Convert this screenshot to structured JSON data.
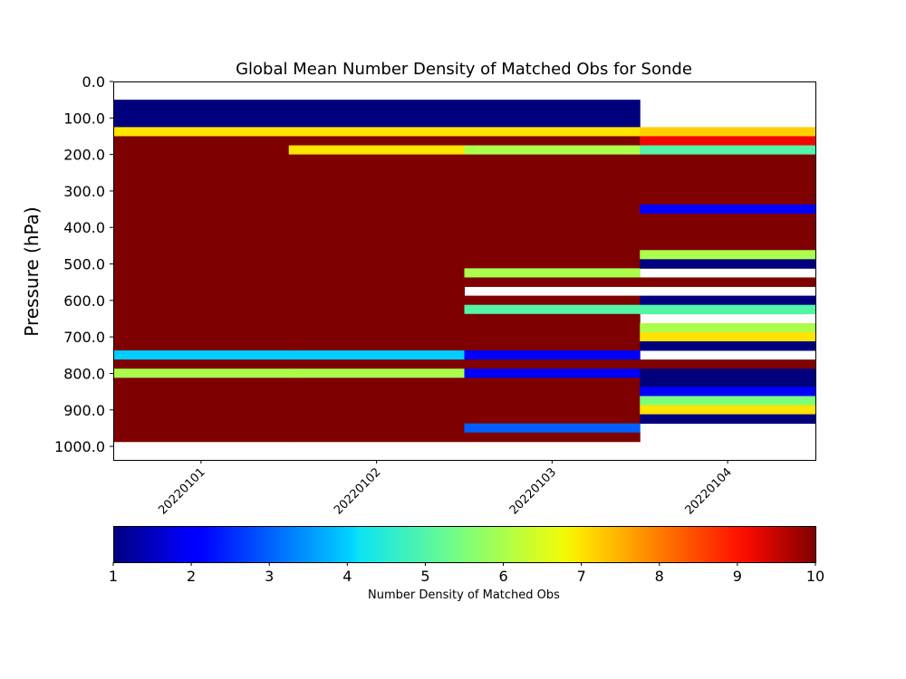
{
  "chart_data": {
    "type": "heatmap",
    "title": "Global Mean Number Density of Matched Obs for Sonde",
    "ylabel": "Pressure (hPa)",
    "xlabel": "",
    "y_inverted": true,
    "ylim": [
      1037,
      0
    ],
    "y_ticks": [
      "0.0",
      "100.0",
      "200.0",
      "300.0",
      "400.0",
      "500.0",
      "600.0",
      "700.0",
      "800.0",
      "900.0",
      "1000.0"
    ],
    "x_categories": [
      "20220101",
      "20220102",
      "20220103",
      "20220104"
    ],
    "colorscale": "jet",
    "vmin": 1,
    "vmax": 10,
    "colorbar_label": "Number Density of Matched Obs",
    "colorbar_ticks": [
      "1",
      "2",
      "3",
      "4",
      "5",
      "6",
      "7",
      "8",
      "9",
      "10"
    ],
    "columns": [
      {
        "category": "20220101",
        "cells": [
          {
            "p0": 50,
            "p1": 125,
            "value": 1
          },
          {
            "p0": 125,
            "p1": 150,
            "value": 7
          },
          {
            "p0": 150,
            "p1": 175,
            "value": 10
          },
          {
            "p0": 175,
            "p1": 200,
            "value": 10
          },
          {
            "p0": 200,
            "p1": 737,
            "value": 10
          },
          {
            "p0": 737,
            "p1": 762,
            "value": 4
          },
          {
            "p0": 762,
            "p1": 787,
            "value": 10
          },
          {
            "p0": 787,
            "p1": 812,
            "value": 6
          },
          {
            "p0": 812,
            "p1": 987,
            "value": 10
          }
        ]
      },
      {
        "category": "20220102",
        "cells": [
          {
            "p0": 50,
            "p1": 125,
            "value": 1
          },
          {
            "p0": 125,
            "p1": 150,
            "value": 7
          },
          {
            "p0": 150,
            "p1": 175,
            "value": 10
          },
          {
            "p0": 175,
            "p1": 200,
            "value": 7
          },
          {
            "p0": 200,
            "p1": 737,
            "value": 10
          },
          {
            "p0": 737,
            "p1": 762,
            "value": 4
          },
          {
            "p0": 762,
            "p1": 787,
            "value": 10
          },
          {
            "p0": 787,
            "p1": 812,
            "value": 6
          },
          {
            "p0": 812,
            "p1": 987,
            "value": 10
          }
        ]
      },
      {
        "category": "20220103",
        "cells": [
          {
            "p0": 50,
            "p1": 125,
            "value": 1
          },
          {
            "p0": 125,
            "p1": 150,
            "value": 7
          },
          {
            "p0": 150,
            "p1": 175,
            "value": 10
          },
          {
            "p0": 175,
            "p1": 200,
            "value": 6
          },
          {
            "p0": 200,
            "p1": 512,
            "value": 10
          },
          {
            "p0": 512,
            "p1": 537,
            "value": 6
          },
          {
            "p0": 537,
            "p1": 562,
            "value": 10
          },
          {
            "p0": 562,
            "p1": 587,
            "value": null
          },
          {
            "p0": 587,
            "p1": 612,
            "value": 10
          },
          {
            "p0": 612,
            "p1": 637,
            "value": 5
          },
          {
            "p0": 637,
            "p1": 737,
            "value": 10
          },
          {
            "p0": 737,
            "p1": 762,
            "value": 2
          },
          {
            "p0": 762,
            "p1": 787,
            "value": 10
          },
          {
            "p0": 787,
            "p1": 812,
            "value": 2
          },
          {
            "p0": 812,
            "p1": 937,
            "value": 10
          },
          {
            "p0": 937,
            "p1": 962,
            "value": 3
          },
          {
            "p0": 962,
            "p1": 987,
            "value": 10
          }
        ]
      },
      {
        "category": "20220104",
        "cells": [
          {
            "p0": 125,
            "p1": 150,
            "value": 7.2
          },
          {
            "p0": 150,
            "p1": 175,
            "value": 9.2
          },
          {
            "p0": 175,
            "p1": 200,
            "value": 5
          },
          {
            "p0": 200,
            "p1": 337,
            "value": 10
          },
          {
            "p0": 337,
            "p1": 362,
            "value": 2
          },
          {
            "p0": 362,
            "p1": 462,
            "value": 10
          },
          {
            "p0": 462,
            "p1": 487,
            "value": 6
          },
          {
            "p0": 487,
            "p1": 512,
            "value": 1
          },
          {
            "p0": 512,
            "p1": 537,
            "value": null
          },
          {
            "p0": 537,
            "p1": 562,
            "value": 10
          },
          {
            "p0": 562,
            "p1": 587,
            "value": null
          },
          {
            "p0": 587,
            "p1": 612,
            "value": 1
          },
          {
            "p0": 612,
            "p1": 637,
            "value": 5
          },
          {
            "p0": 637,
            "p1": 662,
            "value": null
          },
          {
            "p0": 662,
            "p1": 687,
            "value": 6
          },
          {
            "p0": 687,
            "p1": 712,
            "value": 7
          },
          {
            "p0": 712,
            "p1": 737,
            "value": 1
          },
          {
            "p0": 737,
            "p1": 762,
            "value": null
          },
          {
            "p0": 762,
            "p1": 787,
            "value": 10
          },
          {
            "p0": 787,
            "p1": 837,
            "value": 1
          },
          {
            "p0": 837,
            "p1": 862,
            "value": 2
          },
          {
            "p0": 862,
            "p1": 887,
            "value": 5.5
          },
          {
            "p0": 887,
            "p1": 912,
            "value": 7
          },
          {
            "p0": 912,
            "p1": 937,
            "value": 1
          }
        ]
      }
    ]
  }
}
